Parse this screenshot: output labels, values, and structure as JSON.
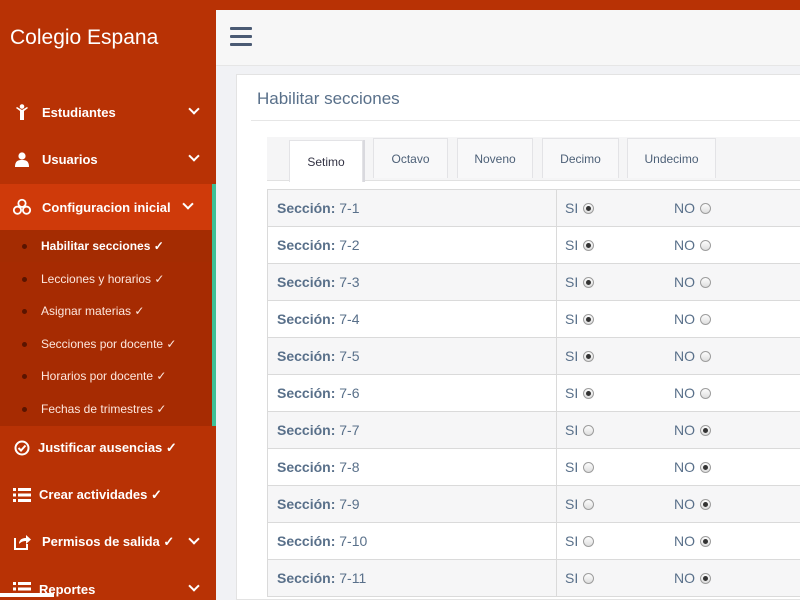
{
  "app": {
    "title": "Colegio Espana"
  },
  "sidebar": {
    "items": [
      {
        "label": "Estudiantes",
        "icon": "student-icon",
        "chevron": true
      },
      {
        "label": "Usuarios",
        "icon": "user-icon",
        "chevron": true
      },
      {
        "label": "Configuracion inicial",
        "icon": "cubes-icon",
        "chevron": true,
        "active": true
      },
      {
        "label": "Justificar ausencias ✓",
        "icon": "check-circle-icon",
        "chevron": false
      },
      {
        "label": "Crear actividades ✓",
        "icon": "list-icon",
        "chevron": false
      },
      {
        "label": "Permisos de salida ✓",
        "icon": "share-icon",
        "chevron": true
      },
      {
        "label": "Reportes",
        "icon": "list-icon",
        "chevron": true
      }
    ],
    "submenu": [
      {
        "label": "Habilitar secciones ✓",
        "current": true
      },
      {
        "label": "Lecciones y horarios ✓"
      },
      {
        "label": "Asignar materias ✓"
      },
      {
        "label": "Secciones por docente ✓"
      },
      {
        "label": "Horarios por docente ✓"
      },
      {
        "label": "Fechas de trimestres ✓"
      }
    ]
  },
  "panel": {
    "title": "Habilitar secciones"
  },
  "tabs": [
    {
      "label": "Setimo",
      "active": true
    },
    {
      "label": "Octavo"
    },
    {
      "label": "Noveno"
    },
    {
      "label": "Decimo"
    },
    {
      "label": "Undecimo"
    }
  ],
  "options": {
    "yes_label": "SI",
    "no_label": "NO"
  },
  "section_prefix": "Sección:",
  "sections": [
    {
      "name": "7-1",
      "enabled": true
    },
    {
      "name": "7-2",
      "enabled": true
    },
    {
      "name": "7-3",
      "enabled": true
    },
    {
      "name": "7-4",
      "enabled": true
    },
    {
      "name": "7-5",
      "enabled": true
    },
    {
      "name": "7-6",
      "enabled": true
    },
    {
      "name": "7-7",
      "enabled": false
    },
    {
      "name": "7-8",
      "enabled": false
    },
    {
      "name": "7-9",
      "enabled": false
    },
    {
      "name": "7-10",
      "enabled": false
    },
    {
      "name": "7-11",
      "enabled": false
    }
  ],
  "colors": {
    "sidebar": "#b83205",
    "active_item": "#cf3a0a",
    "accent": "#3ec096",
    "text": "#59708a"
  }
}
